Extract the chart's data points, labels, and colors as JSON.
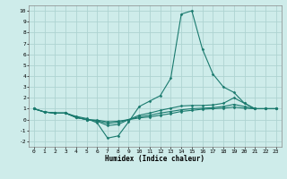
{
  "title": "",
  "xlabel": "Humidex (Indice chaleur)",
  "ylabel": "",
  "xlim": [
    -0.5,
    23.5
  ],
  "ylim": [
    -2.5,
    10.5
  ],
  "xticks": [
    0,
    1,
    2,
    3,
    4,
    5,
    6,
    7,
    8,
    9,
    10,
    11,
    12,
    13,
    14,
    15,
    16,
    17,
    18,
    19,
    20,
    21,
    22,
    23
  ],
  "yticks": [
    -2,
    -1,
    0,
    1,
    2,
    3,
    4,
    5,
    6,
    7,
    8,
    9,
    10
  ],
  "bg_color": "#ceecea",
  "grid_color": "#aed4d1",
  "line_color": "#1a7a6e",
  "curves": [
    {
      "x": [
        0,
        1,
        2,
        3,
        4,
        5,
        6,
        7,
        8,
        9,
        10,
        11,
        12,
        13,
        14,
        15,
        16,
        17,
        18,
        19,
        20,
        21,
        22,
        23
      ],
      "y": [
        1,
        0.7,
        0.6,
        0.6,
        0.3,
        0.1,
        -0.3,
        -1.7,
        -1.5,
        -0.2,
        1.2,
        1.7,
        2.2,
        3.8,
        9.7,
        10.0,
        6.5,
        4.2,
        3.0,
        2.5,
        1.5,
        1.0,
        1.0,
        1.0
      ]
    },
    {
      "x": [
        0,
        1,
        2,
        3,
        4,
        5,
        6,
        7,
        8,
        9,
        10,
        11,
        12,
        13,
        14,
        15,
        16,
        17,
        18,
        19,
        20,
        21,
        22,
        23
      ],
      "y": [
        1,
        0.7,
        0.6,
        0.6,
        0.2,
        0.0,
        -0.15,
        -0.55,
        -0.45,
        0.0,
        0.4,
        0.6,
        0.85,
        1.05,
        1.25,
        1.3,
        1.3,
        1.35,
        1.5,
        2.0,
        1.5,
        1.0,
        1.0,
        1.0
      ]
    },
    {
      "x": [
        0,
        1,
        2,
        3,
        4,
        5,
        6,
        7,
        8,
        9,
        10,
        11,
        12,
        13,
        14,
        15,
        16,
        17,
        18,
        19,
        20,
        21,
        22,
        23
      ],
      "y": [
        1,
        0.7,
        0.6,
        0.6,
        0.2,
        0.0,
        -0.1,
        -0.35,
        -0.25,
        0.0,
        0.25,
        0.4,
        0.6,
        0.75,
        0.9,
        1.0,
        1.05,
        1.1,
        1.2,
        1.4,
        1.2,
        1.0,
        1.0,
        1.0
      ]
    },
    {
      "x": [
        0,
        1,
        2,
        3,
        4,
        5,
        6,
        7,
        8,
        9,
        10,
        11,
        12,
        13,
        14,
        15,
        16,
        17,
        18,
        19,
        20,
        21,
        22,
        23
      ],
      "y": [
        1,
        0.7,
        0.6,
        0.6,
        0.2,
        0.0,
        -0.05,
        -0.2,
        -0.15,
        0.0,
        0.15,
        0.25,
        0.4,
        0.55,
        0.75,
        0.85,
        0.95,
        1.0,
        1.05,
        1.15,
        1.05,
        1.0,
        1.0,
        1.0
      ]
    }
  ]
}
